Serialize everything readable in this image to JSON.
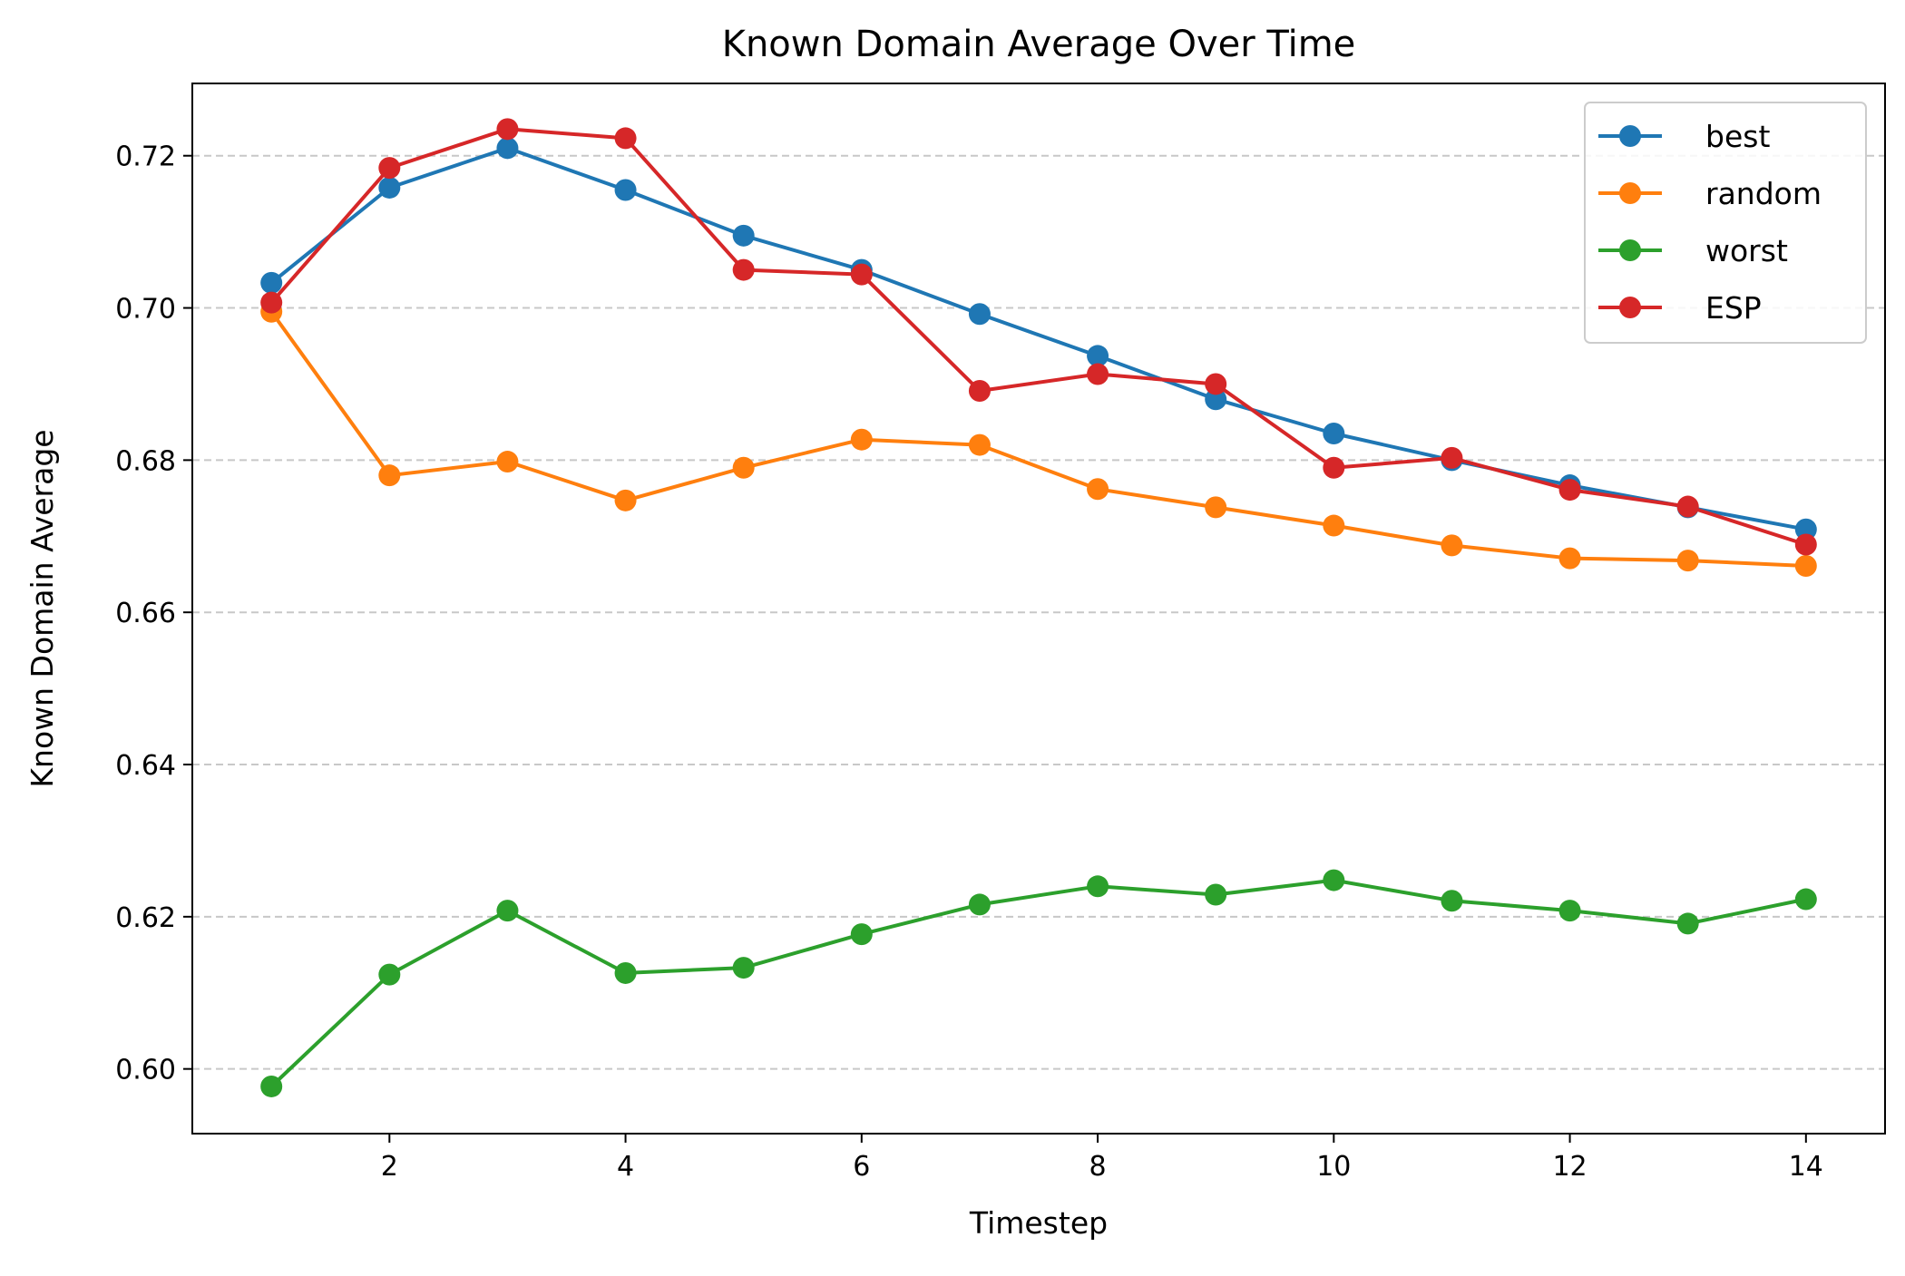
{
  "chart_data": {
    "type": "line",
    "title": "Known Domain Average Over Time",
    "xlabel": "Timestep",
    "ylabel": "Known Domain Average",
    "xlim": [
      0.33,
      14.67
    ],
    "ylim": [
      0.5915,
      0.7295
    ],
    "xticks": [
      2,
      4,
      6,
      8,
      10,
      12,
      14
    ],
    "yticks": [
      0.6,
      0.62,
      0.64,
      0.66,
      0.68,
      0.7,
      0.72
    ],
    "ytick_labels": [
      "0.60",
      "0.62",
      "0.64",
      "0.66",
      "0.68",
      "0.70",
      "0.72"
    ],
    "grid": "y-dashed",
    "legend_position": "top-right",
    "x": [
      1,
      2,
      3,
      4,
      5,
      6,
      7,
      8,
      9,
      10,
      11,
      12,
      13,
      14
    ],
    "series": [
      {
        "name": "best",
        "color": "#1f77b4",
        "values": [
          0.7033,
          0.7158,
          0.721,
          0.7155,
          0.7095,
          0.705,
          0.6992,
          0.6937,
          0.688,
          0.6835,
          0.68,
          0.6767,
          0.6738,
          0.6709
        ]
      },
      {
        "name": "random",
        "color": "#ff7f0e",
        "values": [
          0.6995,
          0.678,
          0.6798,
          0.6747,
          0.679,
          0.6827,
          0.682,
          0.6762,
          0.6738,
          0.6714,
          0.6688,
          0.6671,
          0.6668,
          0.6661
        ]
      },
      {
        "name": "worst",
        "color": "#2ca02c",
        "values": [
          0.5977,
          0.6124,
          0.6208,
          0.6126,
          0.6133,
          0.6177,
          0.6216,
          0.624,
          0.6229,
          0.6248,
          0.6221,
          0.6208,
          0.6191,
          0.6223
        ]
      },
      {
        "name": "ESP",
        "color": "#d62728",
        "values": [
          0.7007,
          0.7184,
          0.7235,
          0.7223,
          0.705,
          0.7044,
          0.6891,
          0.6913,
          0.69,
          0.679,
          0.6803,
          0.6761,
          0.6739,
          0.6689
        ]
      }
    ]
  }
}
